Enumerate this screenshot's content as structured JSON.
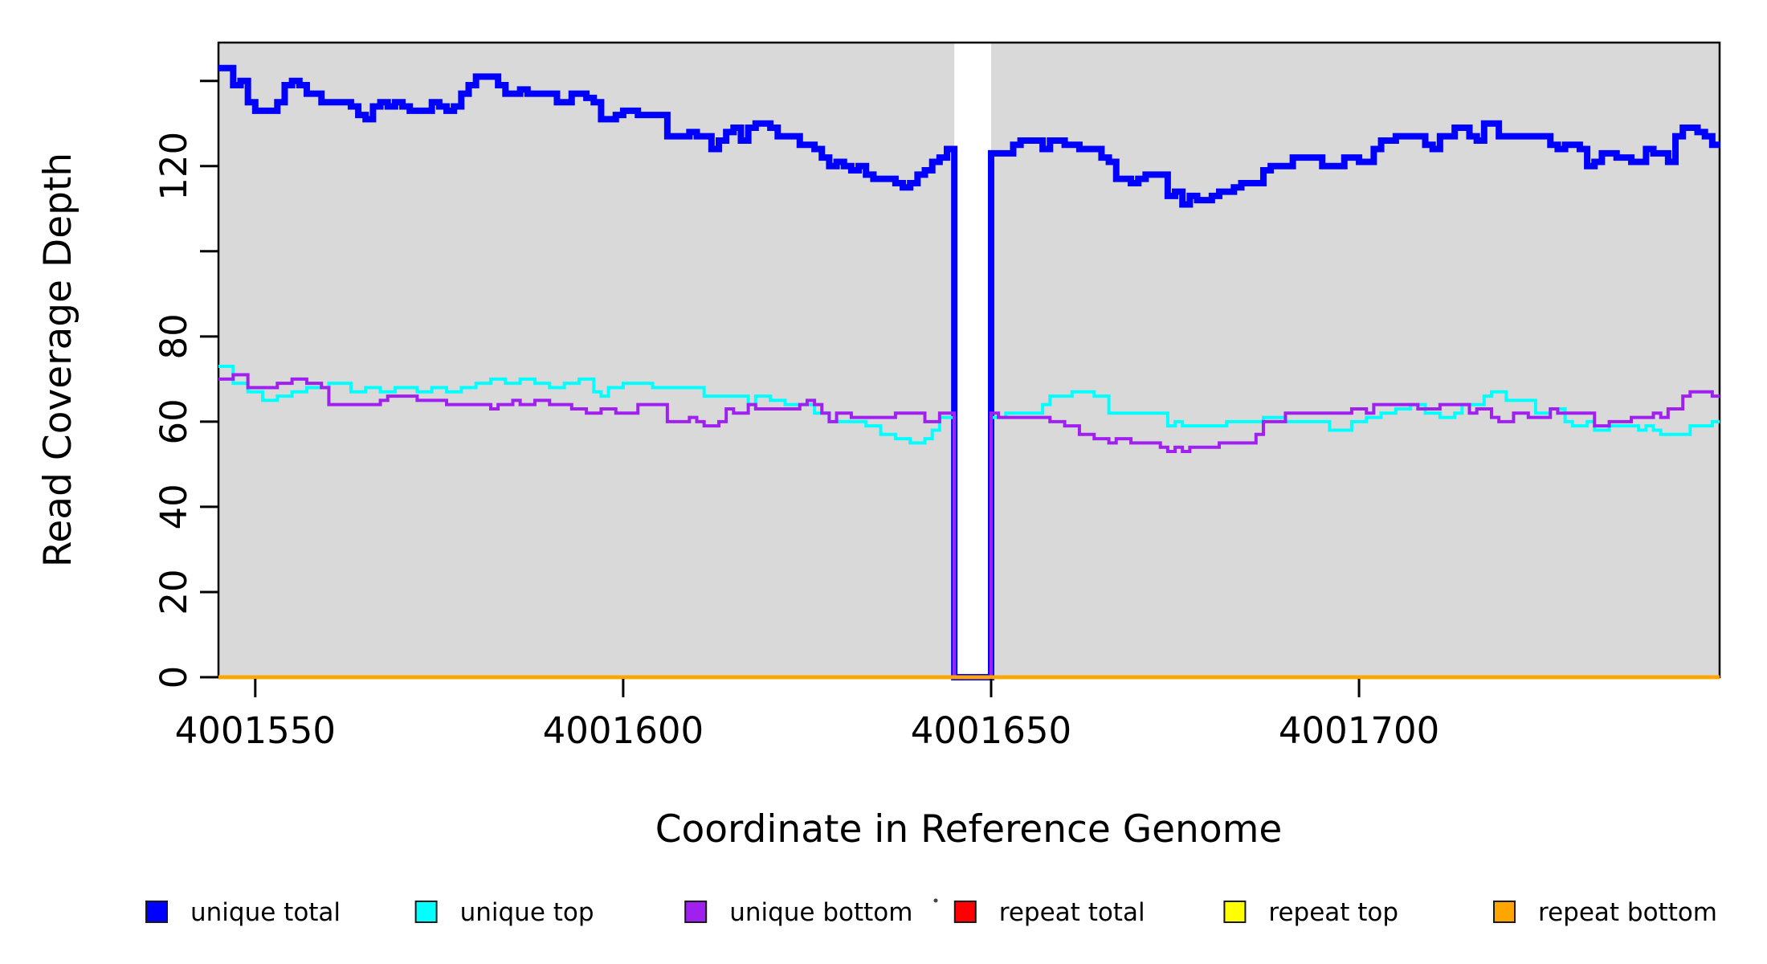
{
  "chart_data": {
    "type": "line",
    "subtype": "step",
    "title": "",
    "xlabel": "Coordinate in Reference Genome",
    "ylabel": "Read Coverage Depth",
    "xlim": [
      4001545,
      4001749
    ],
    "ylim": [
      0,
      149
    ],
    "grid": false,
    "plot_background_color": "#d9d9d9",
    "background_gap_x": [
      4001645,
      4001650
    ],
    "axis_color": "#000000",
    "legend_position": "bottom",
    "xticks": {
      "values": [
        4001550,
        4001600,
        4001650,
        4001700
      ],
      "labels": [
        "4001550",
        "4001600",
        "4001650",
        "4001700"
      ]
    },
    "yticks": {
      "values": [
        0,
        20,
        40,
        60,
        80,
        100,
        120,
        140
      ],
      "labels": [
        "0",
        "20",
        "40",
        "60",
        "80",
        "",
        "120",
        ""
      ]
    },
    "series": [
      {
        "name": "unique total",
        "color": "#0000ff",
        "width": 8,
        "points": [
          [
            4001545,
            143
          ],
          [
            4001547,
            139
          ],
          [
            4001548,
            140
          ],
          [
            4001549,
            135
          ],
          [
            4001550,
            133
          ],
          [
            4001553,
            135
          ],
          [
            4001554,
            139
          ],
          [
            4001555,
            140
          ],
          [
            4001556,
            139
          ],
          [
            4001557,
            137
          ],
          [
            4001559,
            135
          ],
          [
            4001563,
            134
          ],
          [
            4001564,
            132
          ],
          [
            4001565,
            131
          ],
          [
            4001566,
            134
          ],
          [
            4001567,
            135
          ],
          [
            4001568,
            134
          ],
          [
            4001569,
            135
          ],
          [
            4001570,
            134
          ],
          [
            4001571,
            133
          ],
          [
            4001574,
            135
          ],
          [
            4001575,
            134
          ],
          [
            4001576,
            133
          ],
          [
            4001577,
            134
          ],
          [
            4001578,
            137
          ],
          [
            4001579,
            139
          ],
          [
            4001580,
            141
          ],
          [
            4001583,
            139
          ],
          [
            4001584,
            137
          ],
          [
            4001586,
            138
          ],
          [
            4001587,
            137
          ],
          [
            4001591,
            135
          ],
          [
            4001593,
            137
          ],
          [
            4001595,
            136
          ],
          [
            4001596,
            135
          ],
          [
            4001597,
            131
          ],
          [
            4001599,
            132
          ],
          [
            4001600,
            133
          ],
          [
            4001602,
            132
          ],
          [
            4001606,
            127
          ],
          [
            4001609,
            128
          ],
          [
            4001610,
            127
          ],
          [
            4001612,
            124
          ],
          [
            4001613,
            126
          ],
          [
            4001614,
            128
          ],
          [
            4001615,
            129
          ],
          [
            4001616,
            126
          ],
          [
            4001617,
            129
          ],
          [
            4001618,
            130
          ],
          [
            4001620,
            129
          ],
          [
            4001621,
            127
          ],
          [
            4001624,
            125
          ],
          [
            4001626,
            124
          ],
          [
            4001627,
            122
          ],
          [
            4001628,
            120
          ],
          [
            4001629,
            121
          ],
          [
            4001630,
            120
          ],
          [
            4001631,
            119
          ],
          [
            4001632,
            120
          ],
          [
            4001633,
            118
          ],
          [
            4001634,
            117
          ],
          [
            4001637,
            116
          ],
          [
            4001638,
            115
          ],
          [
            4001639,
            116
          ],
          [
            4001640,
            118
          ],
          [
            4001641,
            119
          ],
          [
            4001642,
            121
          ],
          [
            4001643,
            122
          ],
          [
            4001644,
            124
          ],
          [
            4001645,
            0
          ],
          [
            4001650,
            123
          ],
          [
            4001653,
            125
          ],
          [
            4001654,
            126
          ],
          [
            4001657,
            124
          ],
          [
            4001658,
            126
          ],
          [
            4001660,
            125
          ],
          [
            4001662,
            124
          ],
          [
            4001665,
            122
          ],
          [
            4001666,
            121
          ],
          [
            4001667,
            117
          ],
          [
            4001669,
            116
          ],
          [
            4001670,
            117
          ],
          [
            4001671,
            118
          ],
          [
            4001674,
            113
          ],
          [
            4001675,
            114
          ],
          [
            4001676,
            111
          ],
          [
            4001677,
            113
          ],
          [
            4001678,
            112
          ],
          [
            4001680,
            113
          ],
          [
            4001681,
            114
          ],
          [
            4001683,
            115
          ],
          [
            4001684,
            116
          ],
          [
            4001687,
            119
          ],
          [
            4001688,
            120
          ],
          [
            4001691,
            122
          ],
          [
            4001695,
            120
          ],
          [
            4001698,
            122
          ],
          [
            4001700,
            121
          ],
          [
            4001702,
            124
          ],
          [
            4001703,
            126
          ],
          [
            4001705,
            127
          ],
          [
            4001709,
            125
          ],
          [
            4001710,
            124
          ],
          [
            4001711,
            127
          ],
          [
            4001713,
            129
          ],
          [
            4001715,
            127
          ],
          [
            4001716,
            126
          ],
          [
            4001717,
            130
          ],
          [
            4001719,
            127
          ],
          [
            4001726,
            125
          ],
          [
            4001727,
            124
          ],
          [
            4001728,
            125
          ],
          [
            4001730,
            124
          ],
          [
            4001731,
            120
          ],
          [
            4001732,
            121
          ],
          [
            4001733,
            123
          ],
          [
            4001735,
            122
          ],
          [
            4001737,
            121
          ],
          [
            4001739,
            124
          ],
          [
            4001740,
            123
          ],
          [
            4001742,
            121
          ],
          [
            4001743,
            127
          ],
          [
            4001744,
            129
          ],
          [
            4001746,
            128
          ],
          [
            4001747,
            127
          ],
          [
            4001748,
            125
          ]
        ]
      },
      {
        "name": "unique top",
        "color": "#00ffff",
        "width": 4,
        "points": [
          [
            4001545,
            73
          ],
          [
            4001547,
            69
          ],
          [
            4001549,
            67
          ],
          [
            4001551,
            65
          ],
          [
            4001553,
            66
          ],
          [
            4001555,
            67
          ],
          [
            4001557,
            68
          ],
          [
            4001560,
            69
          ],
          [
            4001563,
            67
          ],
          [
            4001565,
            68
          ],
          [
            4001567,
            67
          ],
          [
            4001569,
            68
          ],
          [
            4001572,
            67
          ],
          [
            4001574,
            68
          ],
          [
            4001576,
            67
          ],
          [
            4001578,
            68
          ],
          [
            4001580,
            69
          ],
          [
            4001582,
            70
          ],
          [
            4001584,
            69
          ],
          [
            4001586,
            70
          ],
          [
            4001588,
            69
          ],
          [
            4001590,
            68
          ],
          [
            4001592,
            69
          ],
          [
            4001594,
            70
          ],
          [
            4001596,
            67
          ],
          [
            4001597,
            66
          ],
          [
            4001598,
            68
          ],
          [
            4001600,
            69
          ],
          [
            4001604,
            68
          ],
          [
            4001611,
            66
          ],
          [
            4001617,
            64
          ],
          [
            4001618,
            66
          ],
          [
            4001620,
            65
          ],
          [
            4001622,
            64
          ],
          [
            4001626,
            62
          ],
          [
            4001628,
            60
          ],
          [
            4001633,
            59
          ],
          [
            4001635,
            57
          ],
          [
            4001637,
            56
          ],
          [
            4001639,
            55
          ],
          [
            4001641,
            56
          ],
          [
            4001642,
            58
          ],
          [
            4001643,
            61
          ],
          [
            4001645,
            0
          ],
          [
            4001650,
            61
          ],
          [
            4001652,
            62
          ],
          [
            4001657,
            64
          ],
          [
            4001658,
            66
          ],
          [
            4001661,
            67
          ],
          [
            4001664,
            66
          ],
          [
            4001666,
            62
          ],
          [
            4001674,
            59
          ],
          [
            4001675,
            60
          ],
          [
            4001676,
            59
          ],
          [
            4001682,
            60
          ],
          [
            4001687,
            61
          ],
          [
            4001690,
            60
          ],
          [
            4001696,
            58
          ],
          [
            4001699,
            60
          ],
          [
            4001701,
            61
          ],
          [
            4001703,
            62
          ],
          [
            4001705,
            63
          ],
          [
            4001707,
            64
          ],
          [
            4001709,
            62
          ],
          [
            4001711,
            61
          ],
          [
            4001713,
            62
          ],
          [
            4001714,
            64
          ],
          [
            4001717,
            66
          ],
          [
            4001718,
            67
          ],
          [
            4001720,
            65
          ],
          [
            4001724,
            62
          ],
          [
            4001726,
            63
          ],
          [
            4001728,
            60
          ],
          [
            4001729,
            59
          ],
          [
            4001731,
            60
          ],
          [
            4001732,
            58
          ],
          [
            4001734,
            59
          ],
          [
            4001738,
            58
          ],
          [
            4001739,
            59
          ],
          [
            4001740,
            58
          ],
          [
            4001741,
            57
          ],
          [
            4001745,
            59
          ],
          [
            4001748,
            60
          ]
        ]
      },
      {
        "name": "unique bottom",
        "color": "#a020f0",
        "width": 4,
        "points": [
          [
            4001545,
            70
          ],
          [
            4001547,
            71
          ],
          [
            4001549,
            68
          ],
          [
            4001553,
            69
          ],
          [
            4001555,
            70
          ],
          [
            4001557,
            69
          ],
          [
            4001559,
            68
          ],
          [
            4001560,
            64
          ],
          [
            4001567,
            65
          ],
          [
            4001568,
            66
          ],
          [
            4001572,
            65
          ],
          [
            4001576,
            64
          ],
          [
            4001582,
            63
          ],
          [
            4001583,
            64
          ],
          [
            4001585,
            65
          ],
          [
            4001586,
            64
          ],
          [
            4001588,
            65
          ],
          [
            4001590,
            64
          ],
          [
            4001593,
            63
          ],
          [
            4001595,
            62
          ],
          [
            4001597,
            63
          ],
          [
            4001599,
            62
          ],
          [
            4001602,
            64
          ],
          [
            4001606,
            60
          ],
          [
            4001609,
            61
          ],
          [
            4001610,
            60
          ],
          [
            4001611,
            59
          ],
          [
            4001613,
            60
          ],
          [
            4001614,
            63
          ],
          [
            4001615,
            62
          ],
          [
            4001617,
            64
          ],
          [
            4001618,
            63
          ],
          [
            4001624,
            64
          ],
          [
            4001625,
            65
          ],
          [
            4001626,
            64
          ],
          [
            4001627,
            62
          ],
          [
            4001628,
            60
          ],
          [
            4001629,
            62
          ],
          [
            4001631,
            61
          ],
          [
            4001637,
            62
          ],
          [
            4001641,
            60
          ],
          [
            4001643,
            62
          ],
          [
            4001645,
            0
          ],
          [
            4001650,
            62
          ],
          [
            4001651,
            61
          ],
          [
            4001658,
            60
          ],
          [
            4001660,
            59
          ],
          [
            4001662,
            57
          ],
          [
            4001664,
            56
          ],
          [
            4001666,
            55
          ],
          [
            4001667,
            56
          ],
          [
            4001669,
            55
          ],
          [
            4001673,
            54
          ],
          [
            4001674,
            53
          ],
          [
            4001675,
            54
          ],
          [
            4001676,
            53
          ],
          [
            4001677,
            54
          ],
          [
            4001681,
            55
          ],
          [
            4001686,
            57
          ],
          [
            4001687,
            60
          ],
          [
            4001690,
            62
          ],
          [
            4001699,
            63
          ],
          [
            4001701,
            62
          ],
          [
            4001702,
            64
          ],
          [
            4001708,
            63
          ],
          [
            4001711,
            64
          ],
          [
            4001715,
            62
          ],
          [
            4001716,
            63
          ],
          [
            4001718,
            61
          ],
          [
            4001719,
            60
          ],
          [
            4001721,
            62
          ],
          [
            4001723,
            61
          ],
          [
            4001726,
            63
          ],
          [
            4001727,
            62
          ],
          [
            4001732,
            59
          ],
          [
            4001734,
            60
          ],
          [
            4001737,
            61
          ],
          [
            4001740,
            62
          ],
          [
            4001741,
            61
          ],
          [
            4001742,
            63
          ],
          [
            4001744,
            66
          ],
          [
            4001745,
            67
          ],
          [
            4001748,
            66
          ]
        ]
      },
      {
        "name": "repeat total",
        "color": "#ff0000",
        "width": 4.5,
        "points": [
          [
            4001545,
            0
          ]
        ]
      },
      {
        "name": "repeat top",
        "color": "#ffff00",
        "width": 4.5,
        "points": [
          [
            4001545,
            0
          ]
        ]
      },
      {
        "name": "repeat bottom",
        "color": "#ffa500",
        "width": 4.5,
        "points": [
          [
            4001545,
            0
          ]
        ]
      }
    ]
  }
}
